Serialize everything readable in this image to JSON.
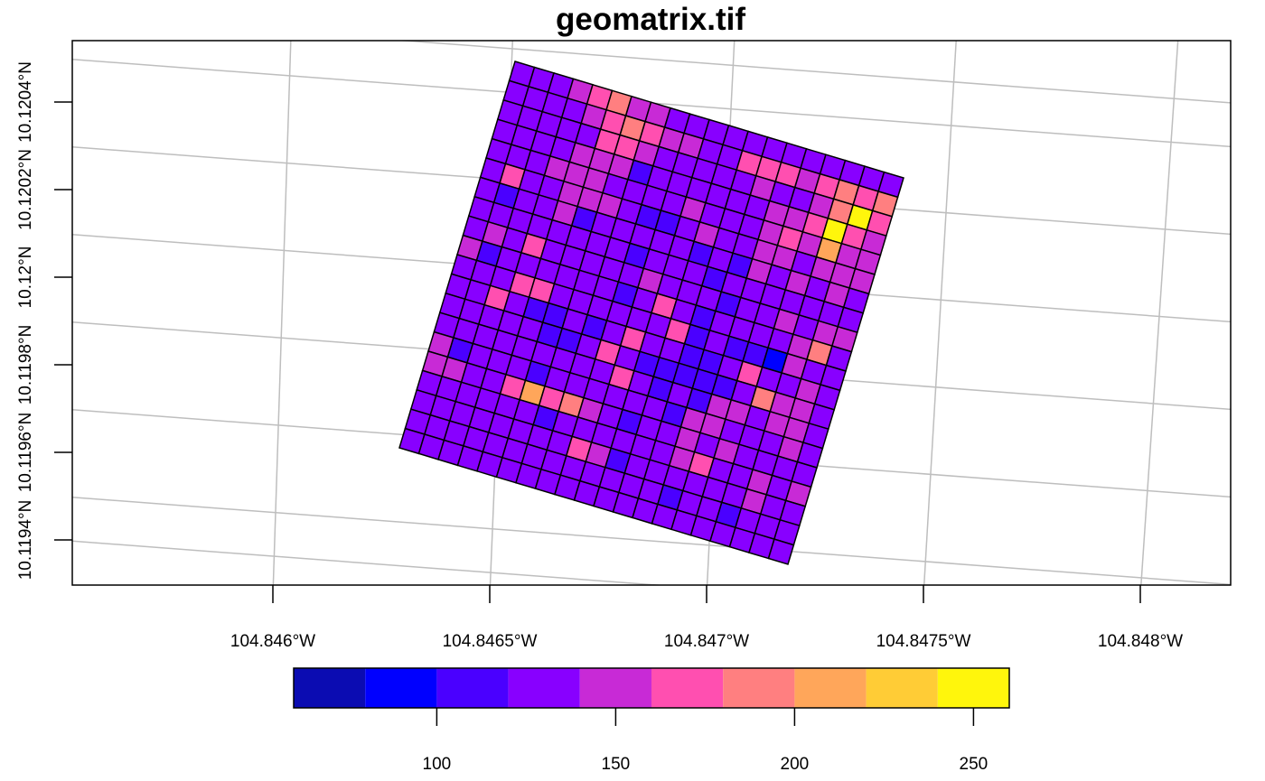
{
  "title": "geomatrix.tif",
  "x_axis": {
    "ticks": [
      {
        "value": -104.846,
        "label": "104.846°W"
      },
      {
        "value": -104.8465,
        "label": "104.8465°W"
      },
      {
        "value": -104.847,
        "label": "104.847°W"
      },
      {
        "value": -104.8475,
        "label": "104.8475°W"
      },
      {
        "value": -104.848,
        "label": "104.848°W"
      }
    ]
  },
  "y_axis": {
    "ticks": [
      {
        "value": 10.1194,
        "label": "10.1194°N"
      },
      {
        "value": 10.1196,
        "label": "10.1196°N"
      },
      {
        "value": 10.1198,
        "label": "10.1198°N"
      },
      {
        "value": 10.12,
        "label": "10.12°N"
      },
      {
        "value": 10.1202,
        "label": "10.1202°N"
      },
      {
        "value": 10.1204,
        "label": "10.1204°N"
      }
    ]
  },
  "legend": {
    "breaks": [
      60,
      80,
      100,
      120,
      140,
      160,
      180,
      200,
      220,
      240,
      260
    ],
    "colors": [
      "#0b0cb2",
      "#0000ff",
      "#4a00ff",
      "#8800ff",
      "#c82ad6",
      "#ff4fb0",
      "#ff7f80",
      "#ffa65a",
      "#ffcc36",
      "#fff60c"
    ],
    "tick_values": [
      100,
      150,
      200,
      250
    ],
    "tick_labels": [
      "100",
      "150",
      "200",
      "250"
    ]
  },
  "chart_data": {
    "type": "heatmap",
    "title": "geomatrix.tif",
    "rows": 20,
    "cols": 20,
    "value_range": [
      60,
      260
    ],
    "values": [
      [
        130,
        125,
        130,
        150,
        175,
        185,
        150,
        140,
        135,
        130,
        130,
        130,
        130,
        130,
        130,
        130,
        130,
        130,
        130,
        130
      ],
      [
        130,
        120,
        125,
        130,
        140,
        170,
        180,
        160,
        150,
        140,
        135,
        130,
        165,
        165,
        160,
        150,
        170,
        180,
        160,
        190
      ],
      [
        125,
        120,
        120,
        130,
        135,
        160,
        175,
        140,
        130,
        125,
        130,
        120,
        130,
        140,
        130,
        125,
        140,
        180,
        240,
        170
      ],
      [
        130,
        120,
        135,
        125,
        140,
        145,
        140,
        110,
        130,
        120,
        130,
        125,
        130,
        135,
        150,
        145,
        170,
        240,
        175,
        150
      ],
      [
        125,
        130,
        130,
        140,
        150,
        155,
        125,
        135,
        130,
        125,
        140,
        120,
        125,
        125,
        140,
        175,
        140,
        215,
        150,
        140
      ],
      [
        130,
        170,
        120,
        125,
        140,
        140,
        155,
        120,
        105,
        115,
        125,
        140,
        120,
        130,
        140,
        150,
        135,
        140,
        150,
        145
      ],
      [
        125,
        105,
        125,
        120,
        150,
        110,
        120,
        125,
        130,
        120,
        125,
        110,
        120,
        115,
        145,
        135,
        140,
        125,
        140,
        125
      ],
      [
        135,
        125,
        130,
        130,
        135,
        130,
        125,
        120,
        115,
        130,
        125,
        120,
        115,
        125,
        130,
        120,
        125,
        130,
        135,
        130
      ],
      [
        130,
        140,
        125,
        165,
        125,
        130,
        120,
        125,
        125,
        155,
        120,
        120,
        120,
        110,
        125,
        130,
        140,
        125,
        150,
        145
      ],
      [
        140,
        110,
        125,
        125,
        120,
        120,
        120,
        120,
        110,
        120,
        175,
        120,
        110,
        120,
        130,
        120,
        130,
        140,
        180,
        130
      ],
      [
        130,
        130,
        130,
        175,
        160,
        130,
        120,
        120,
        125,
        120,
        130,
        175,
        110,
        120,
        115,
        110,
        80,
        140,
        135,
        130
      ],
      [
        130,
        130,
        160,
        130,
        110,
        100,
        120,
        110,
        130,
        165,
        120,
        120,
        115,
        110,
        120,
        170,
        130,
        125,
        150,
        135
      ],
      [
        125,
        120,
        135,
        120,
        120,
        110,
        110,
        120,
        170,
        120,
        115,
        110,
        110,
        110,
        110,
        120,
        180,
        150,
        140,
        125
      ],
      [
        125,
        135,
        130,
        130,
        120,
        130,
        120,
        120,
        120,
        160,
        120,
        110,
        120,
        110,
        140,
        150,
        130,
        150,
        145,
        130
      ],
      [
        150,
        110,
        125,
        130,
        130,
        110,
        120,
        130,
        130,
        120,
        130,
        120,
        110,
        140,
        150,
        130,
        125,
        130,
        140,
        125
      ],
      [
        150,
        145,
        125,
        130,
        175,
        215,
        170,
        185,
        140,
        130,
        110,
        120,
        130,
        150,
        130,
        140,
        130,
        125,
        130,
        130
      ],
      [
        130,
        130,
        130,
        130,
        120,
        130,
        100,
        125,
        130,
        130,
        120,
        125,
        120,
        140,
        160,
        120,
        130,
        140,
        130,
        140
      ],
      [
        130,
        130,
        130,
        130,
        130,
        130,
        130,
        130,
        175,
        155,
        110,
        125,
        130,
        120,
        135,
        125,
        130,
        140,
        130,
        130
      ],
      [
        130,
        130,
        130,
        130,
        130,
        130,
        130,
        130,
        130,
        130,
        130,
        130,
        130,
        110,
        130,
        135,
        110,
        125,
        130,
        130
      ],
      [
        130,
        130,
        130,
        130,
        130,
        130,
        130,
        130,
        130,
        130,
        130,
        130,
        130,
        130,
        130,
        130,
        130,
        130,
        130,
        130
      ]
    ]
  }
}
